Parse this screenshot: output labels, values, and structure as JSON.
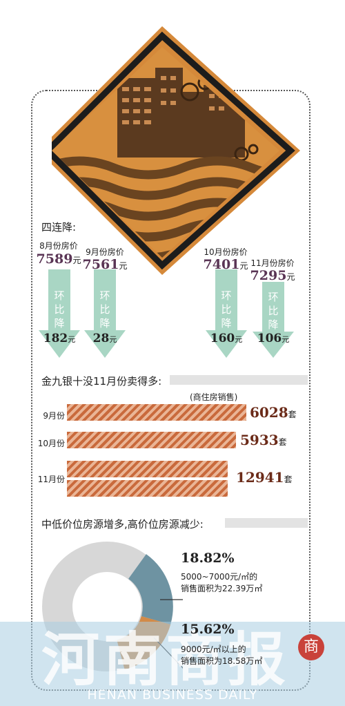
{
  "section1": {
    "title": "四连降:"
  },
  "price_months": [
    {
      "label": "8月份房价",
      "price": "7589",
      "price_unit": "元",
      "arrow_text": [
        "环",
        "比",
        "降"
      ],
      "drop": "182",
      "drop_unit": "元"
    },
    {
      "label": "9月份房价",
      "price": "7561",
      "price_unit": "元",
      "arrow_text": [
        "环",
        "比",
        "降"
      ],
      "drop": "28",
      "drop_unit": "元"
    },
    {
      "label": "10月份房价",
      "price": "7401",
      "price_unit": "元",
      "arrow_text": [
        "环",
        "比",
        "降"
      ],
      "drop": "160",
      "drop_unit": "元"
    },
    {
      "label": "11月份房价",
      "price": "7295",
      "price_unit": "元",
      "arrow_text": [
        "环",
        "比",
        "降"
      ],
      "drop": "106",
      "drop_unit": "元"
    }
  ],
  "section2": {
    "title": "金九银十没11月份卖得多:",
    "subtitle": "(商住房销售)"
  },
  "sales": [
    {
      "label": "9月份",
      "value": "6028",
      "unit": "套"
    },
    {
      "label": "10月份",
      "value": "5933",
      "unit": "套"
    },
    {
      "label": "11月份",
      "value": "12941",
      "unit": "套"
    }
  ],
  "section3": {
    "title": "中低价位房源增多,高价位房源减少:"
  },
  "donut": [
    {
      "pct": "18.82%",
      "desc": [
        "5000~7000元/㎡的",
        "销售面积为22.39万㎡"
      ]
    },
    {
      "pct": "15.62%",
      "desc": [
        "9000元/㎡以上的",
        "销售面积为18.58万㎡"
      ]
    }
  ],
  "watermark": {
    "title": "河南商报",
    "subtitle": "HENAN BUSINESS DAILY",
    "seal": "商"
  },
  "colors": {
    "price": "#5a3555",
    "arrow": "#a9d6c4",
    "bar_dark": "#c96a3c",
    "bar_light": "#eab596",
    "sign_orange": "#d5893a",
    "donut_gray": "#d7d7d7",
    "donut_blue": "#6e93a2",
    "donut_orange": "#d28a48"
  },
  "chart_data": [
    {
      "type": "bar",
      "title": "四连降:",
      "categories": [
        "8月份房价",
        "9月份房价",
        "10月份房价",
        "11月份房价"
      ],
      "series": [
        {
          "values": [
            7589,
            7561,
            7401,
            7295
          ]
        },
        {
          "values": [
            182,
            28,
            160,
            106
          ]
        }
      ]
    },
    {
      "type": "bar",
      "title": "金九银十没11月份卖得多:",
      "subtitle": "(商住房销售)",
      "categories": [
        "9月份",
        "10月份",
        "11月份"
      ],
      "values": [
        6028,
        5933,
        12941
      ]
    },
    {
      "type": "pie",
      "title": "中低价位房源增多,高价位房源减少:",
      "slices": [
        {
          "label": "5000~7000元/㎡的",
          "value": 18.82
        },
        {
          "label": "9000元/㎡以上的",
          "value": 15.62
        }
      ]
    }
  ]
}
